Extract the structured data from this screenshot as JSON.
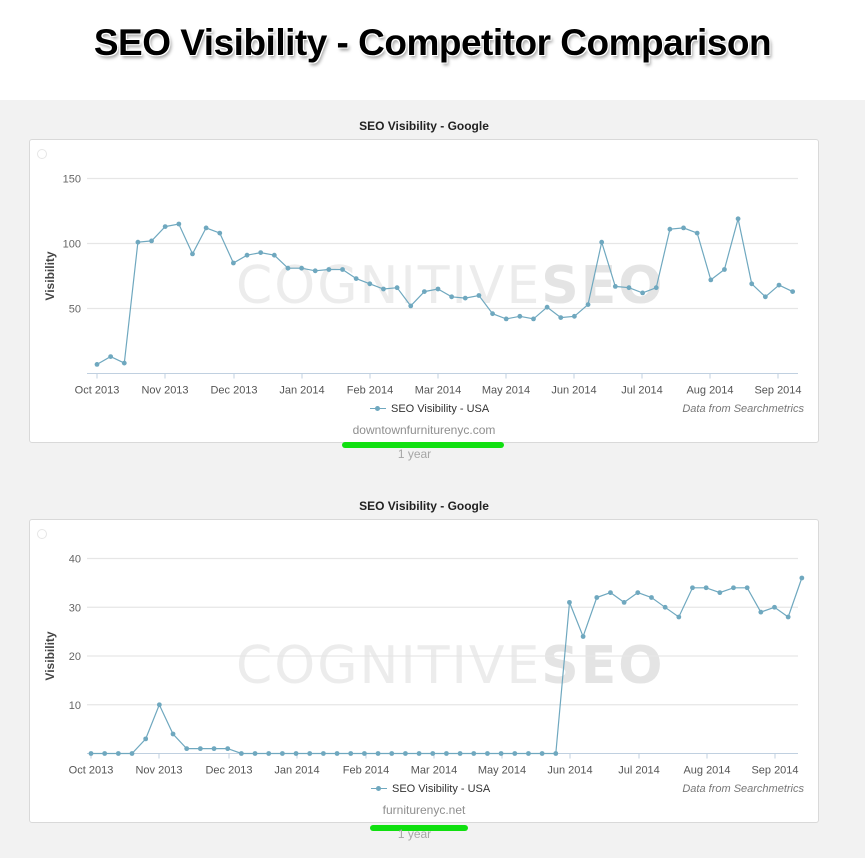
{
  "page": {
    "title": "SEO Visibility - Competitor Comparison"
  },
  "colors": {
    "series": "#6fa8bf",
    "grid": "#e6e6e6",
    "axis": "#c0d0e0",
    "highlight": "#10e010",
    "panel_bg": "#ffffff",
    "page_bg": "#f2f2f2"
  },
  "watermark": {
    "light": "COGNITIVE",
    "bold": "SEO"
  },
  "charts": [
    {
      "title": "SEO Visibility - Google",
      "ylabel": "Visibility",
      "legend": "SEO Visibility - USA",
      "credits": "Data from Searchmetrics",
      "domain": "downtownfurniturenyc.com",
      "range": "1 year",
      "y_ticks": [
        "150",
        "100",
        "50"
      ],
      "x_ticks": [
        "Oct 2013",
        "Nov 2013",
        "Dec 2013",
        "Jan 2014",
        "Feb 2014",
        "Mar 2014",
        "May 2014",
        "Jun 2014",
        "Jul 2014",
        "Aug 2014",
        "Sep 2014"
      ]
    },
    {
      "title": "SEO Visibility - Google",
      "ylabel": "Visibility",
      "legend": "SEO Visibility - USA",
      "credits": "Data from Searchmetrics",
      "domain": "furniturenyc.net",
      "range": "1 year",
      "y_ticks": [
        "40",
        "30",
        "20",
        "10"
      ],
      "x_ticks": [
        "Oct 2013",
        "Nov 2013",
        "Dec 2013",
        "Jan 2014",
        "Feb 2014",
        "Mar 2014",
        "May 2014",
        "Jun 2014",
        "Jul 2014",
        "Aug 2014",
        "Sep 2014"
      ]
    }
  ],
  "chart_data": [
    {
      "type": "line",
      "title": "SEO Visibility - Google",
      "subtitle": "downtownfurniturenyc.com",
      "xlabel": "",
      "ylabel": "Visibility",
      "ylim": [
        0,
        150
      ],
      "y_ticks": [
        50,
        100,
        150
      ],
      "x_tick_labels": [
        "Oct 2013",
        "Nov 2013",
        "Dec 2013",
        "Jan 2014",
        "Feb 2014",
        "Mar 2014",
        "May 2014",
        "Jun 2014",
        "Jul 2014",
        "Aug 2014",
        "Sep 2014"
      ],
      "grid": true,
      "legend": {
        "entries": [
          "SEO Visibility - USA"
        ],
        "position": "bottom-center"
      },
      "annotations": [
        "Data from Searchmetrics",
        "1 year"
      ],
      "x_unit": "weekly, Oct 2013 - Sep 2014",
      "series": [
        {
          "name": "SEO Visibility - USA",
          "values": [
            7,
            13,
            8,
            101,
            102,
            113,
            115,
            92,
            112,
            108,
            85,
            91,
            93,
            91,
            81,
            81,
            79,
            80,
            80,
            73,
            69,
            65,
            66,
            52,
            63,
            65,
            59,
            58,
            60,
            46,
            42,
            44,
            42,
            51,
            43,
            44,
            53,
            101,
            67,
            66,
            62,
            66,
            111,
            112,
            108,
            72,
            80,
            119,
            69,
            59,
            68,
            63
          ]
        }
      ]
    },
    {
      "type": "line",
      "title": "SEO Visibility - Google",
      "subtitle": "furniturenyc.net",
      "xlabel": "",
      "ylabel": "Visibility",
      "ylim": [
        0,
        40
      ],
      "y_ticks": [
        10,
        20,
        30,
        40
      ],
      "x_tick_labels": [
        "Oct 2013",
        "Nov 2013",
        "Dec 2013",
        "Jan 2014",
        "Feb 2014",
        "Mar 2014",
        "May 2014",
        "Jun 2014",
        "Jul 2014",
        "Aug 2014",
        "Sep 2014"
      ],
      "grid": true,
      "legend": {
        "entries": [
          "SEO Visibility - USA"
        ],
        "position": "bottom-center"
      },
      "annotations": [
        "Data from Searchmetrics",
        "1 year"
      ],
      "x_unit": "weekly, Oct 2013 - Sep 2014",
      "series": [
        {
          "name": "SEO Visibility - USA",
          "values": [
            0,
            0,
            0,
            0,
            3,
            10,
            4,
            1,
            1,
            1,
            1,
            0,
            0,
            0,
            0,
            0,
            0,
            0,
            0,
            0,
            0,
            0,
            0,
            0,
            0,
            0,
            0,
            0,
            0,
            0,
            0,
            0,
            0,
            0,
            0,
            31,
            24,
            32,
            33,
            31,
            33,
            32,
            30,
            28,
            34,
            34,
            33,
            34,
            34,
            29,
            30,
            28,
            36
          ]
        }
      ]
    }
  ]
}
